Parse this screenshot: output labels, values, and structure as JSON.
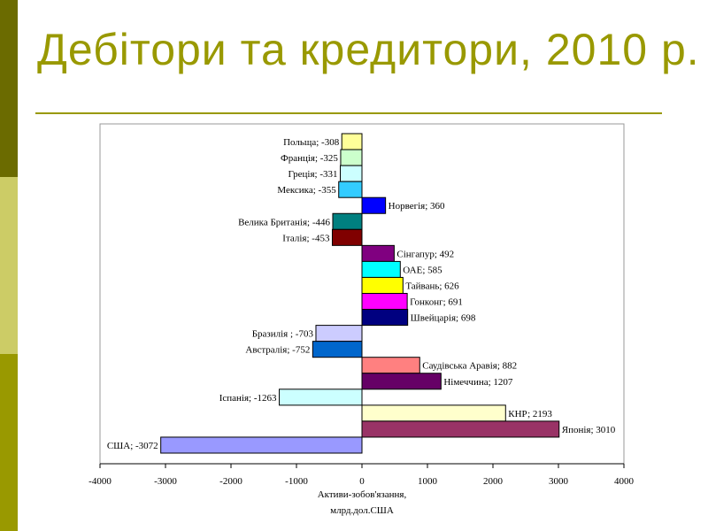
{
  "slide": {
    "title": "Дебітори та кредитори, 2010 р.",
    "accent_colors": [
      "#6b6b00",
      "#cccc66",
      "#999900"
    ]
  },
  "chart_data": {
    "type": "bar",
    "orientation": "horizontal",
    "title": "",
    "xlabel_lines": [
      "Активи-зобов'язання,",
      "млрд.дол.США"
    ],
    "ylabel": "",
    "xlim": [
      -4000,
      4000
    ],
    "xticks": [
      -4000,
      -3000,
      -2000,
      -1000,
      0,
      1000,
      2000,
      3000,
      4000
    ],
    "grid": false,
    "legend": "none",
    "categories": [
      "Польща",
      "Франція",
      "Греція",
      "Мексика",
      "Норвегія",
      "Велика Британія",
      "Італія",
      "Сінгапур",
      "ОАЕ",
      "Тайвань",
      "Гонконг",
      "Швейцарія",
      "Бразилія ",
      "Австралія",
      "Саудівська Аравія",
      "Німеччина",
      "Іспанія",
      "КНР",
      "Японія",
      "США"
    ],
    "values": [
      -308,
      -325,
      -331,
      -355,
      360,
      -446,
      -453,
      492,
      585,
      626,
      691,
      698,
      -703,
      -752,
      882,
      1207,
      -1263,
      2193,
      3010,
      -3072
    ],
    "colors": [
      "#FFFF99",
      "#CCFFCC",
      "#CCFFFF",
      "#33CCFF",
      "#0000FF",
      "#008080",
      "#800000",
      "#800080",
      "#00FFFF",
      "#FFFF00",
      "#FF00FF",
      "#000080",
      "#CCCCFF",
      "#0066CC",
      "#FF8080",
      "#660066",
      "#CCFFFF",
      "#FFFFCC",
      "#993366",
      "#9999FF"
    ],
    "data_labels": [
      "Польща; -308",
      "Франція; -325",
      "Греція; -331",
      "Мексика; -355",
      "Норвегія; 360",
      "Велика Британія; -446",
      "Італія; -453",
      "Сінгапур; 492",
      "ОАЕ; 585",
      "Тайвань; 626",
      "Гонконг; 691",
      "Швейцарія; 698",
      "Бразилія ; -703",
      "Австралія; -752",
      "Саудівська Аравія; 882",
      "Німеччина; 1207",
      "Іспанія; -1263",
      "КНР; 2193",
      "Японія; 3010",
      "США; -3072"
    ]
  }
}
